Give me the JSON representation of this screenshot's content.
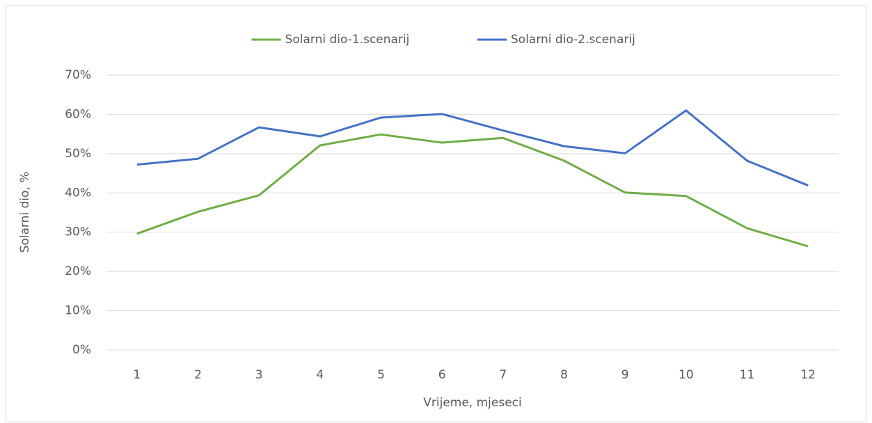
{
  "chart_data": {
    "type": "line",
    "categories": [
      "1",
      "2",
      "3",
      "4",
      "5",
      "6",
      "7",
      "8",
      "9",
      "10",
      "11",
      "12"
    ],
    "series": [
      {
        "name": "Solarni dio-1.scenarij",
        "color": "#70ad47",
        "values": [
          29.6,
          35.2,
          39.4,
          52.1,
          54.9,
          52.8,
          54.0,
          48.2,
          40.1,
          39.2,
          31.0,
          26.4
        ]
      },
      {
        "name": "Solarni dio-2.scenarij",
        "color": "#4472c4",
        "values": [
          47.2,
          48.7,
          56.7,
          54.4,
          59.2,
          60.1,
          55.9,
          51.9,
          50.1,
          61.0,
          48.2,
          41.9
        ]
      }
    ],
    "x_label": "Vrijeme, mjeseci",
    "y_label": "Solarni dio, %",
    "ylim": [
      0,
      70
    ],
    "yticks": [
      {
        "value": 0,
        "label": "0%"
      },
      {
        "value": 10,
        "label": "10%"
      },
      {
        "value": 20,
        "label": "20%"
      },
      {
        "value": 30,
        "label": "30%"
      },
      {
        "value": 40,
        "label": "40%"
      },
      {
        "value": 50,
        "label": "50%"
      },
      {
        "value": 60,
        "label": "60%"
      },
      {
        "value": 70,
        "label": "70%"
      }
    ],
    "grid": true,
    "legend": "top"
  }
}
